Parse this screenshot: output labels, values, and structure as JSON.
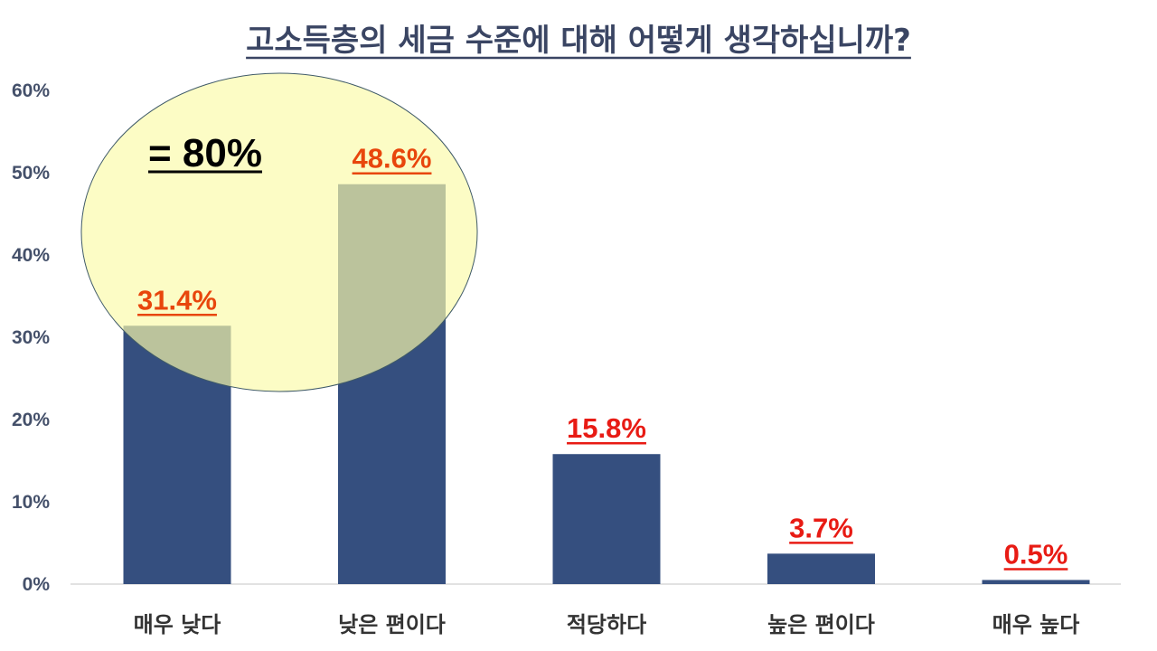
{
  "chart_data": {
    "type": "bar",
    "title": "고소득층의 세금 수준에 대해 어떻게 생각하십니까?",
    "categories": [
      "매우 낮다",
      "낮은 편이다",
      "적당하다",
      "높은 편이다",
      "매우 높다"
    ],
    "values": [
      31.4,
      48.6,
      15.8,
      3.7,
      0.5
    ],
    "data_labels": [
      "31.4%",
      "48.6%",
      "15.8%",
      "3.7%",
      "0.5%"
    ],
    "y_ticks": [
      "0%",
      "10%",
      "20%",
      "30%",
      "40%",
      "50%",
      "60%"
    ],
    "ylim": [
      0,
      60
    ],
    "xlabel": "",
    "ylabel": "",
    "grid": false,
    "legend": "none",
    "annotation": "= 80%",
    "colors": {
      "bar": "#354f7f",
      "label_highlighted": "#e8460c",
      "label_normal": "#e81b14",
      "highlight_fill": "#fafaaa",
      "title": "#3a4563"
    }
  }
}
